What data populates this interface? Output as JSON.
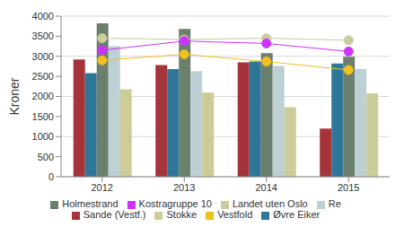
{
  "chart_data": {
    "type": "bar",
    "y_label": "Kroner",
    "categories": [
      "2012",
      "2013",
      "2014",
      "2015"
    ],
    "series": [
      {
        "name": "Sande (Vestf.)",
        "type": "bar",
        "color": "#a4343a",
        "values": [
          2920,
          2780,
          2850,
          1200
        ]
      },
      {
        "name": "Øvre Eiker",
        "type": "bar",
        "color": "#2e7799",
        "values": [
          2580,
          2680,
          2870,
          2820
        ]
      },
      {
        "name": "Holmestrand",
        "type": "bar",
        "color": "#6b7f6d",
        "values": [
          3820,
          3680,
          3080,
          2990
        ]
      },
      {
        "name": "Re",
        "type": "bar",
        "color": "#bdd0d4",
        "values": [
          3250,
          2630,
          2760,
          2680
        ]
      },
      {
        "name": "Stokke",
        "type": "bar",
        "color": "#cccc99",
        "values": [
          2180,
          2100,
          1730,
          2080
        ]
      },
      {
        "name": "Landet uten Oslo",
        "type": "line",
        "marker": "circle",
        "color": "#c9cc9f",
        "values": [
          3450,
          3420,
          3450,
          3400
        ]
      },
      {
        "name": "Vestfold",
        "type": "line",
        "marker": "circle",
        "color": "#f0c020",
        "values": [
          2900,
          3050,
          2870,
          2660
        ]
      },
      {
        "name": "Kostragruppe 10",
        "type": "line",
        "marker": "circle",
        "color": "#cc33ff",
        "values": [
          3150,
          3380,
          3320,
          3120
        ]
      }
    ],
    "ylim": [
      0,
      4000
    ],
    "yticks": [
      0,
      500,
      1000,
      1500,
      2000,
      2500,
      3000,
      3500,
      4000
    ],
    "grid": true,
    "legend": "bottom"
  }
}
